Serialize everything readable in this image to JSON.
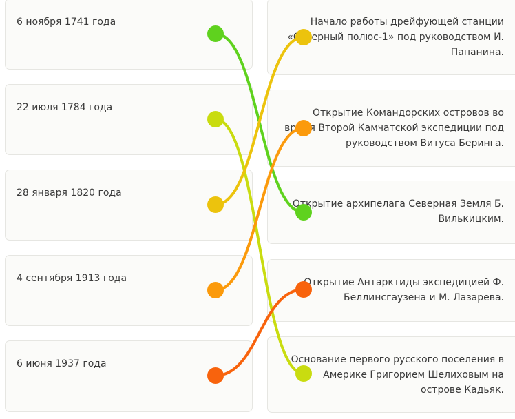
{
  "dates": [
    "6 ноября 1741 года",
    "22 июля 1784 года",
    "28 января 1820 года",
    "4 сентября 1913 года",
    "6 июня 1937 года"
  ],
  "events": [
    "Начало работы дрейфующей станции «Северный полюс-1» под руководством И. Папанина.",
    "Открытие Командорских островов во время Второй Камчатской экспедиции под руководством Витуса Беринга.",
    "Открытие архипелага Северная Земля Б. Вилькицким.",
    "Открытие Антарктиды экспедицией Ф. Беллинсгаузена и М. Лазарева.",
    "Основание первого русского поселения в Америке Григорием Шелиховым на острове Кадьяк."
  ],
  "connections": [
    {
      "from": 0,
      "to": 2,
      "color": "#5fd21e"
    },
    {
      "from": 1,
      "to": 4,
      "color": "#c9dc10"
    },
    {
      "from": 2,
      "to": 0,
      "color": "#ecc30d"
    },
    {
      "from": 3,
      "to": 1,
      "color": "#fb9a0c"
    },
    {
      "from": 4,
      "to": 3,
      "color": "#f8630d"
    }
  ]
}
